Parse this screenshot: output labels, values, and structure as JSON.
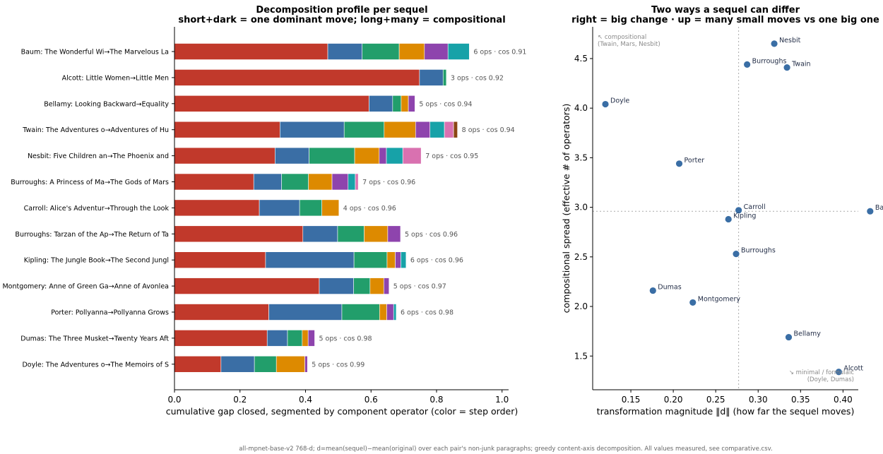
{
  "footer": "all-mpnet-base-v2 768-d; d=mean(sequel)−mean(original) over each pair's non-junk paragraphs; greedy content-axis decomposition. All values measured, see comparative.csv.",
  "chart_data": [
    {
      "type": "bar",
      "orientation": "horizontal-stacked",
      "title": "Decomposition profile per sequel",
      "subtitle": "short+dark = one dominant move; long+many = compositional",
      "xlabel": "cumulative gap closed, segmented by component operator (color = step order)",
      "ylabel": "",
      "xlim": [
        0,
        1.02
      ],
      "xticks": [
        "0.0",
        "0.2",
        "0.4",
        "0.6",
        "0.8",
        "1.0"
      ],
      "segment_colors": [
        "#c1392b",
        "#3a6ea5",
        "#229e6b",
        "#dd8a00",
        "#8e44ad",
        "#17a2a8",
        "#d971b0",
        "#8b4513"
      ],
      "categories": [
        "Baum: The Wonderful Wi→The Marvelous La",
        "Alcott: Little Women→Little Men",
        "Bellamy: Looking Backward→Equality",
        "Twain: The Adventures o→Adventures of Hu",
        "Nesbit: Five Children an→The Phoenix and ",
        "Burroughs: A Princess of Ma→The Gods of Mars",
        "Carroll: Alice's Adventur→Through the Look",
        "Burroughs: Tarzan of the Ap→The Return of Ta",
        "Kipling: The Jungle Book→The Second Jungl",
        "Montgomery: Anne of Green Ga→Anne of Avonlea",
        "Porter: Pollyanna→Pollyanna Grows ",
        "Dumas: The Three Musket→Twenty Years Aft",
        "Doyle: The Adventures o→The Memoirs of S"
      ],
      "segments": [
        [
          0.468,
          0.105,
          0.113,
          0.077,
          0.072,
          0.065
        ],
        [
          0.748,
          0.072,
          0.01
        ],
        [
          0.594,
          0.072,
          0.026,
          0.022,
          0.02
        ],
        [
          0.322,
          0.196,
          0.122,
          0.096,
          0.044,
          0.044,
          0.028,
          0.012
        ],
        [
          0.307,
          0.104,
          0.139,
          0.075,
          0.022,
          0.05,
          0.056
        ],
        [
          0.242,
          0.085,
          0.082,
          0.072,
          0.049,
          0.022,
          0.009
        ],
        [
          0.259,
          0.123,
          0.068,
          0.052
        ],
        [
          0.392,
          0.106,
          0.081,
          0.072,
          0.039
        ],
        [
          0.278,
          0.27,
          0.101,
          0.025,
          0.017,
          0.016
        ],
        [
          0.442,
          0.105,
          0.05,
          0.042,
          0.016
        ],
        [
          0.288,
          0.223,
          0.115,
          0.022,
          0.021,
          0.008
        ],
        [
          0.283,
          0.062,
          0.045,
          0.018,
          0.02
        ],
        [
          0.142,
          0.102,
          0.067,
          0.087,
          0.008
        ]
      ],
      "annotations": [
        "6 ops · cos 0.91",
        "3 ops · cos 0.92",
        "5 ops · cos 0.94",
        "8 ops · cos 0.94",
        "7 ops · cos 0.95",
        "7 ops · cos 0.96",
        "4 ops · cos 0.96",
        "5 ops · cos 0.96",
        "6 ops · cos 0.96",
        "5 ops · cos 0.97",
        "6 ops · cos 0.98",
        "5 ops · cos 0.98",
        "5 ops · cos 0.99"
      ]
    },
    {
      "type": "scatter",
      "title": "Two ways a sequel can differ",
      "subtitle": "right = big change · up = many small moves vs one big one",
      "xlabel": "transformation magnitude  ‖d‖  (how far the sequel moves)",
      "ylabel": "compositional spread  (effective # of operators)",
      "xlim": [
        0.105,
        0.418
      ],
      "ylim": [
        1.16,
        4.82
      ],
      "xticks": [
        "0.15",
        "0.20",
        "0.25",
        "0.30",
        "0.35",
        "0.40"
      ],
      "yticks": [
        "1.5",
        "2.0",
        "2.5",
        "3.0",
        "3.5",
        "4.0",
        "4.5"
      ],
      "median_x": 0.277,
      "median_y": 2.96,
      "color": "#3a6ea5",
      "points": [
        {
          "label": "Nesbit",
          "x": 0.319,
          "y": 4.65
        },
        {
          "label": "Burroughs",
          "x": 0.287,
          "y": 4.44
        },
        {
          "label": "Twain",
          "x": 0.334,
          "y": 4.41
        },
        {
          "label": "Doyle",
          "x": 0.12,
          "y": 4.04
        },
        {
          "label": "Porter",
          "x": 0.207,
          "y": 3.44
        },
        {
          "label": "Carroll",
          "x": 0.277,
          "y": 2.97
        },
        {
          "label": "Baum",
          "x": 0.432,
          "y": 2.96
        },
        {
          "label": "Kipling",
          "x": 0.265,
          "y": 2.88
        },
        {
          "label": "Burroughs",
          "x": 0.274,
          "y": 2.53
        },
        {
          "label": "Dumas",
          "x": 0.176,
          "y": 2.16
        },
        {
          "label": "Montgomery",
          "x": 0.223,
          "y": 2.04
        },
        {
          "label": "Bellamy",
          "x": 0.336,
          "y": 1.69
        },
        {
          "label": "Alcott",
          "x": 0.395,
          "y": 1.34
        }
      ],
      "corner_notes": {
        "top_left": [
          "↖ compositional",
          "(Twain, Mars, Nesbit)"
        ],
        "bottom_right": [
          "↘ minimal / formulaic",
          "(Doyle, Dumas)"
        ]
      }
    }
  ]
}
